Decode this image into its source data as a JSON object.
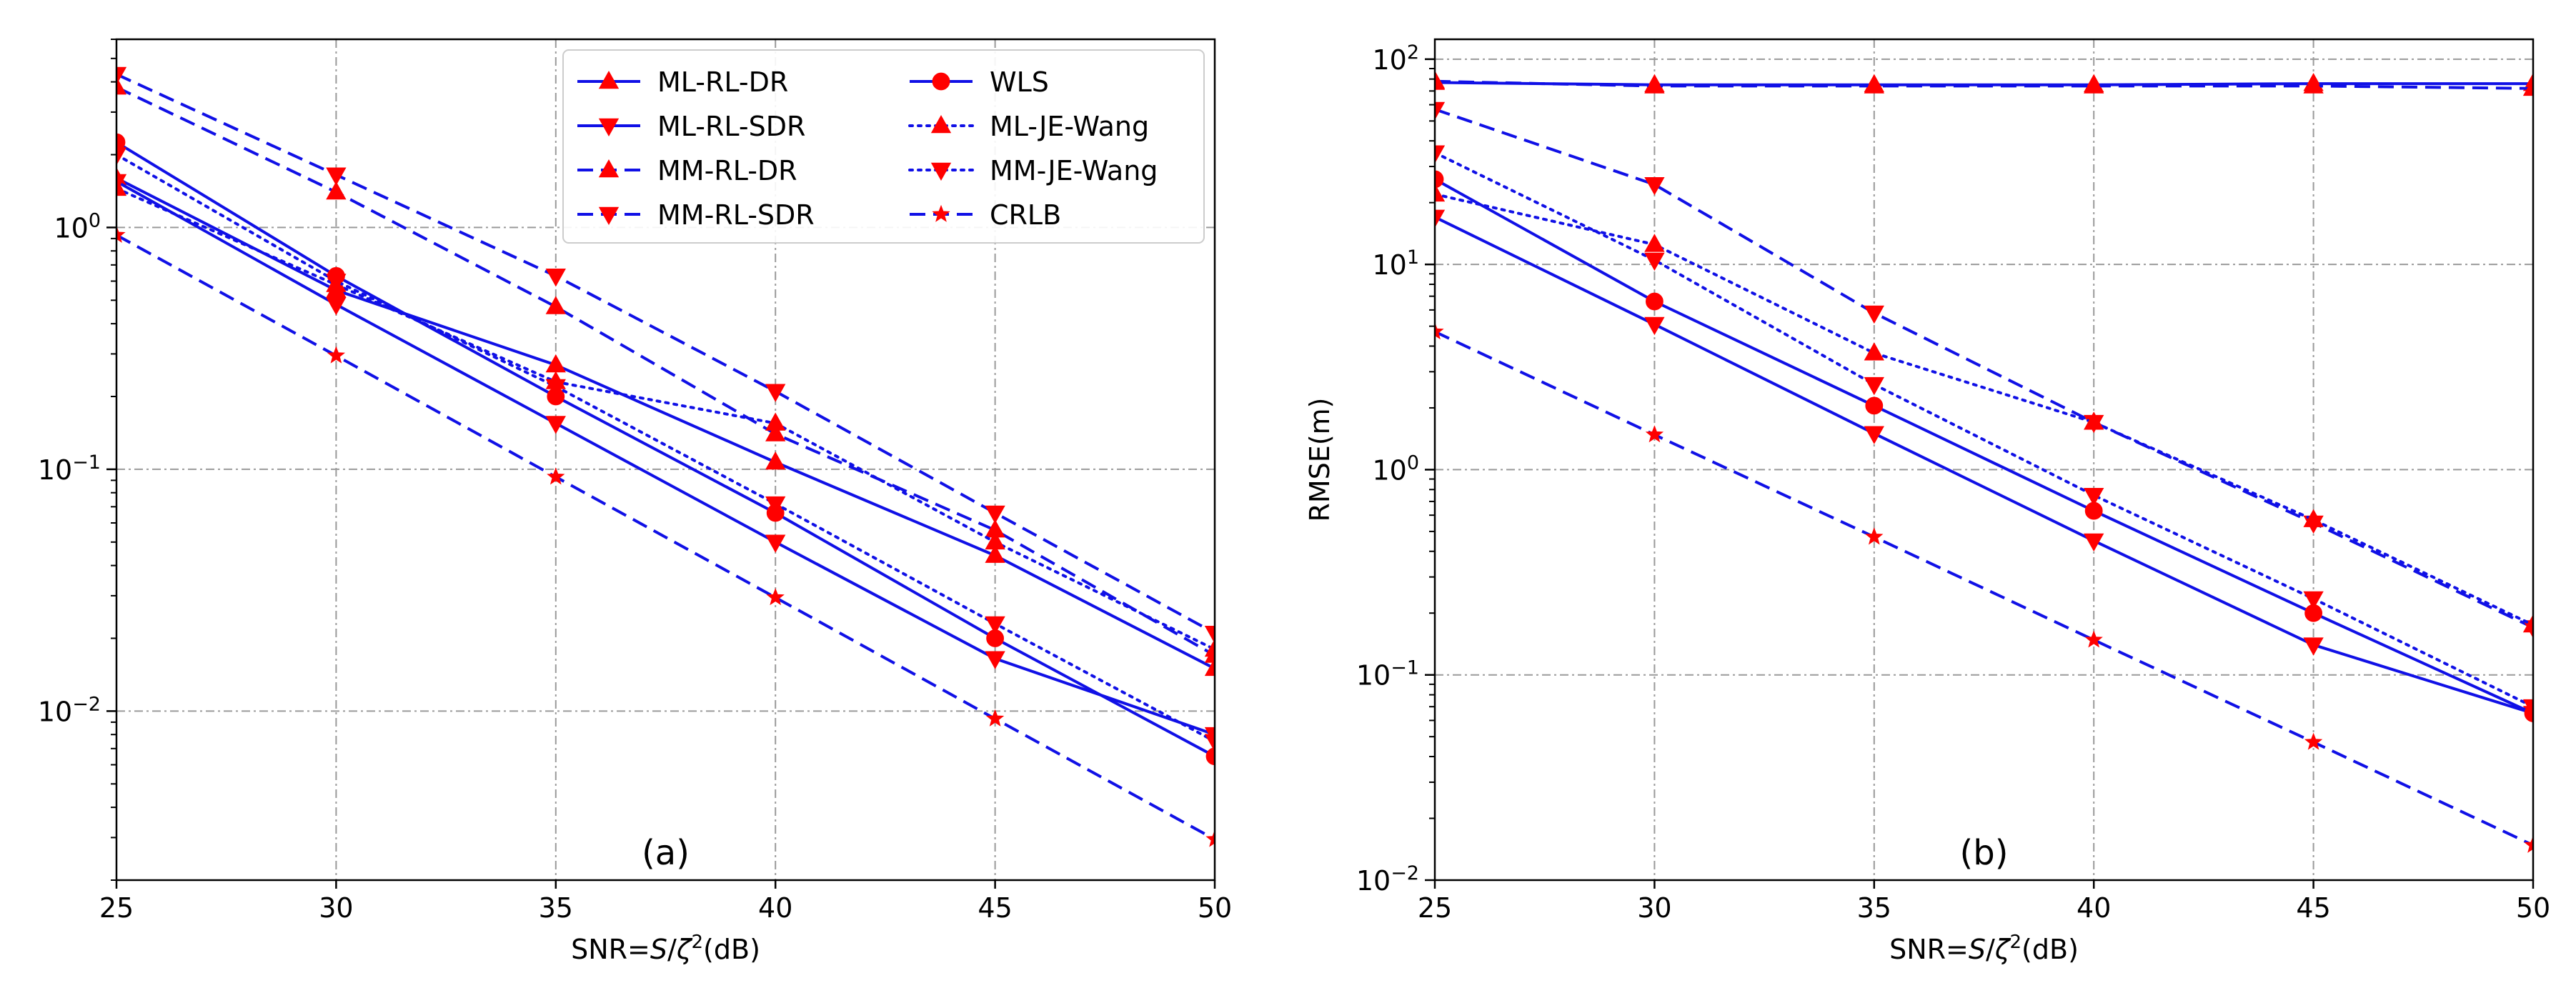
{
  "figure": {
    "colors": {
      "line": "#1010e6",
      "marker": "#ff0000",
      "grid": "#9a9a9a",
      "axis": "#000000"
    }
  },
  "legend": {
    "location": "upper-right of panel (a)",
    "columns": 2
  },
  "chart_data": [
    {
      "type": "line",
      "panel_label": "(a)",
      "xlabel": "SNR=S/ζ²(dB)",
      "xlabel_parts": {
        "prefix": "SNR=",
        "var1": "S",
        "slash": "/",
        "var2": "ζ",
        "sup": "2",
        "suffix": "(dB)"
      },
      "ylabel": "",
      "y_scale": "log",
      "xlim": [
        25,
        50
      ],
      "ylim": [
        0.002,
        6
      ],
      "x_ticks": [
        25,
        30,
        35,
        40,
        45,
        50
      ],
      "x_tick_labels": [
        "25",
        "30",
        "35",
        "40",
        "45",
        "50"
      ],
      "y_ticks": [
        0.01,
        0.1,
        1
      ],
      "y_tick_labels": [
        {
          "base": "10",
          "exp": "−2"
        },
        {
          "base": "10",
          "exp": "−1"
        },
        {
          "base": "10",
          "exp": "0"
        }
      ],
      "grid": true,
      "x": [
        25,
        30,
        35,
        40,
        45,
        50
      ],
      "series": [
        {
          "name": "ML-RL-DR",
          "line": "solid",
          "marker": "triangle-up",
          "values": [
            1.6,
            0.55,
            0.27,
            0.107,
            0.044,
            0.015
          ]
        },
        {
          "name": "ML-RL-SDR",
          "line": "solid",
          "marker": "triangle-down",
          "values": [
            1.55,
            0.48,
            0.155,
            0.05,
            0.0165,
            0.008
          ]
        },
        {
          "name": "MM-RL-DR",
          "line": "dashed",
          "marker": "triangle-up",
          "values": [
            3.8,
            1.4,
            0.47,
            0.14,
            0.056,
            0.017
          ]
        },
        {
          "name": "MM-RL-SDR",
          "line": "dashed",
          "marker": "triangle-down",
          "values": [
            4.3,
            1.65,
            0.63,
            0.21,
            0.066,
            0.021
          ]
        },
        {
          "name": "WLS",
          "line": "solid",
          "marker": "circle",
          "values": [
            2.25,
            0.63,
            0.2,
            0.066,
            0.02,
            0.0065
          ]
        },
        {
          "name": "ML-JE-Wang",
          "line": "dotted",
          "marker": "triangle-up",
          "values": [
            1.45,
            0.58,
            0.23,
            0.155,
            0.05,
            0.018
          ]
        },
        {
          "name": "MM-JE-Wang",
          "line": "dotted",
          "marker": "triangle-down",
          "values": [
            2.0,
            0.6,
            0.22,
            0.072,
            0.023,
            0.0075
          ]
        },
        {
          "name": "CRLB",
          "line": "dashed",
          "marker": "star",
          "values": [
            0.93,
            0.295,
            0.093,
            0.0295,
            0.0093,
            0.00295
          ]
        }
      ]
    },
    {
      "type": "line",
      "panel_label": "(b)",
      "xlabel": "SNR=S/ζ²(dB)",
      "xlabel_parts": {
        "prefix": "SNR=",
        "var1": "S",
        "slash": "/",
        "var2": "ζ",
        "sup": "2",
        "suffix": "(dB)"
      },
      "ylabel": "RMSE(m)",
      "y_scale": "log",
      "xlim": [
        25,
        50
      ],
      "ylim": [
        0.01,
        125
      ],
      "x_ticks": [
        25,
        30,
        35,
        40,
        45,
        50
      ],
      "x_tick_labels": [
        "25",
        "30",
        "35",
        "40",
        "45",
        "50"
      ],
      "y_ticks": [
        0.01,
        0.1,
        1,
        10,
        100
      ],
      "y_tick_labels": [
        {
          "base": "10",
          "exp": "−2"
        },
        {
          "base": "10",
          "exp": "−1"
        },
        {
          "base": "10",
          "exp": "0"
        },
        {
          "base": "10",
          "exp": "1"
        },
        {
          "base": "10",
          "exp": "2"
        }
      ],
      "grid": true,
      "x": [
        25,
        30,
        35,
        40,
        45,
        50
      ],
      "series": [
        {
          "name": "ML-RL-DR",
          "line": "solid",
          "marker": "triangle-up",
          "values": [
            77,
            75,
            75,
            75,
            76,
            76
          ]
        },
        {
          "name": "ML-RL-SDR",
          "line": "solid",
          "marker": "triangle-down",
          "values": [
            17,
            5.1,
            1.5,
            0.45,
            0.14,
            0.065
          ]
        },
        {
          "name": "MM-RL-DR",
          "line": "dashed",
          "marker": "triangle-up",
          "values": [
            78,
            74,
            74,
            74,
            74,
            72
          ]
        },
        {
          "name": "MM-RL-SDR",
          "line": "dashed",
          "marker": "triangle-down",
          "values": [
            57,
            24.5,
            5.8,
            1.7,
            0.55,
            0.17
          ]
        },
        {
          "name": "WLS",
          "line": "solid",
          "marker": "circle",
          "values": [
            26,
            6.6,
            2.05,
            0.63,
            0.2,
            0.065
          ]
        },
        {
          "name": "ML-JE-Wang",
          "line": "dotted",
          "marker": "triangle-up",
          "values": [
            22,
            12.5,
            3.7,
            1.7,
            0.57,
            0.175
          ]
        },
        {
          "name": "MM-JE-Wang",
          "line": "dotted",
          "marker": "triangle-down",
          "values": [
            35,
            10.5,
            2.6,
            0.75,
            0.235,
            0.07
          ]
        },
        {
          "name": "CRLB",
          "line": "dashed",
          "marker": "star",
          "values": [
            4.7,
            1.48,
            0.47,
            0.148,
            0.047,
            0.0148
          ]
        }
      ]
    }
  ]
}
